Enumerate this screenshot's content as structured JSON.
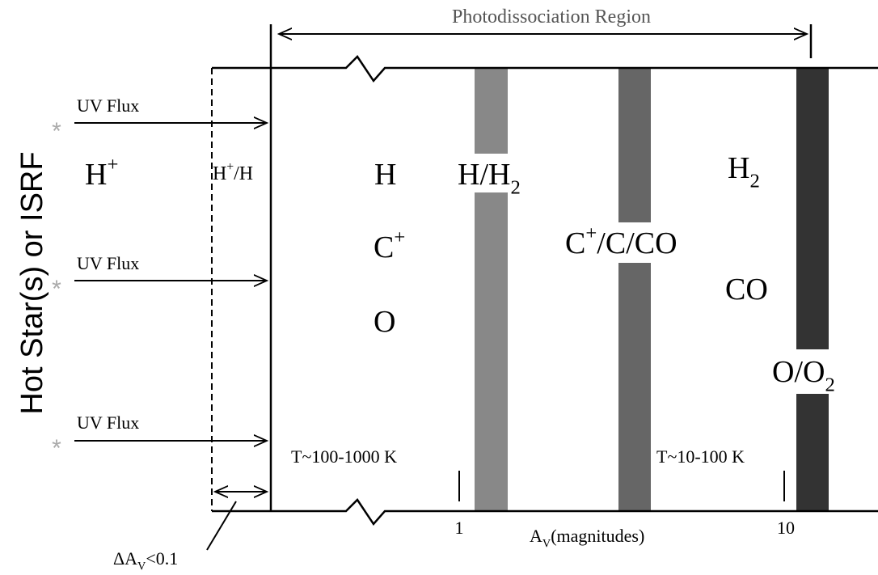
{
  "title": "Photodissociation Region",
  "side_label": "Hot Star(s) or ISRF",
  "stars": [
    "*",
    "*",
    "*"
  ],
  "uv_flux": [
    "UV Flux",
    "UV Flux",
    "UV Flux"
  ],
  "zones": {
    "h_plus": [
      {
        "t": "H"
      },
      {
        "t": "+",
        "pos": "sup"
      }
    ],
    "h_plus_h": [
      {
        "t": "H"
      },
      {
        "t": "+",
        "pos": "sup"
      },
      {
        "t": "/H"
      }
    ],
    "h": [
      {
        "t": "H"
      }
    ],
    "c_plus": [
      {
        "t": "C"
      },
      {
        "t": "+",
        "pos": "sup"
      }
    ],
    "o": [
      {
        "t": "O"
      }
    ],
    "h_h2": [
      {
        "t": "H/H"
      },
      {
        "t": "2",
        "pos": "sub"
      }
    ],
    "c_c_co": [
      {
        "t": "C"
      },
      {
        "t": "+",
        "pos": "sup"
      },
      {
        "t": "/C/CO"
      }
    ],
    "h2": [
      {
        "t": "H"
      },
      {
        "t": "2",
        "pos": "sub"
      }
    ],
    "co": [
      {
        "t": "CO"
      }
    ],
    "o_o2": [
      {
        "t": "O/O"
      },
      {
        "t": "2",
        "pos": "sub"
      }
    ]
  },
  "temperatures": [
    "T~100-1000 K",
    "T~10-100 K"
  ],
  "axis": {
    "ticks": [
      "1",
      "10"
    ],
    "label": [
      {
        "t": "A"
      },
      {
        "t": "V",
        "pos": "sub"
      },
      {
        "t": "(magnitudes)"
      }
    ]
  },
  "delta_label": [
    {
      "t": "ΔA"
    },
    {
      "t": "V",
      "pos": "sub"
    },
    {
      "t": "<0.1"
    }
  ]
}
